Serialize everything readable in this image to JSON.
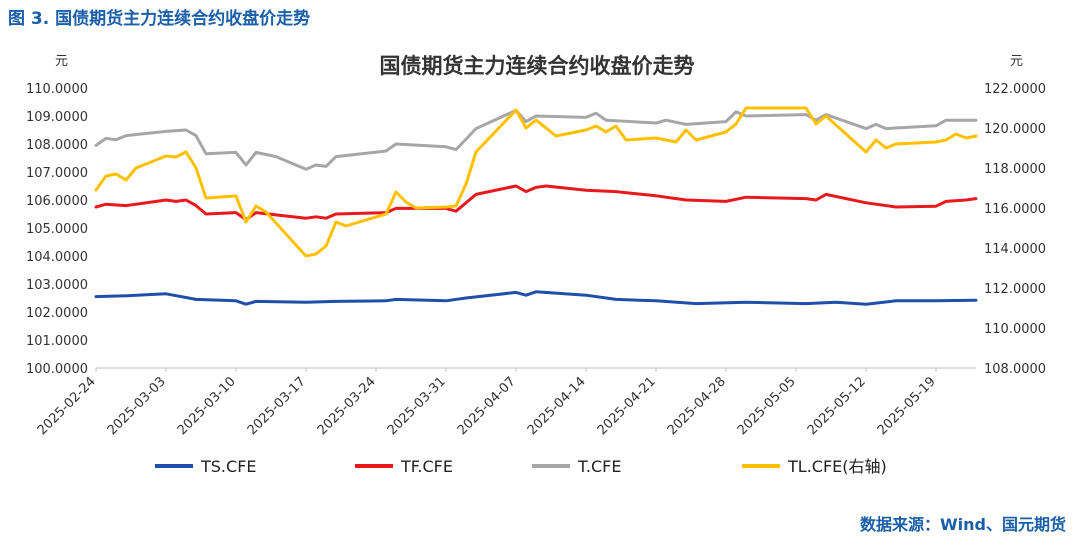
{
  "figure_caption": "图 3. 国债期货主力连续合约收盘价走势",
  "source_note": "数据来源：Wind、国元期货",
  "chart_data": {
    "type": "line",
    "title": "国债期货主力连续合约收盘价走势",
    "y_left_unit": "元",
    "y_right_unit": "元",
    "y_left_ticks": [
      "100.0000",
      "101.0000",
      "102.0000",
      "103.0000",
      "104.0000",
      "105.0000",
      "106.0000",
      "107.0000",
      "108.0000",
      "109.0000",
      "110.0000"
    ],
    "y_right_ticks": [
      "108.0000",
      "110.0000",
      "112.0000",
      "114.0000",
      "116.0000",
      "118.0000",
      "120.0000",
      "122.0000"
    ],
    "ylim_left": [
      100,
      110
    ],
    "ylim_right": [
      108,
      122
    ],
    "x_ticks": [
      "2025-02-24",
      "2025-03-03",
      "2025-03-10",
      "2025-03-17",
      "2025-03-24",
      "2025-03-31",
      "2025-04-07",
      "2025-04-14",
      "2025-04-21",
      "2025-04-28",
      "2025-05-05",
      "2025-05-12",
      "2025-05-19"
    ],
    "x_range": [
      "2025-02-24",
      "2025-05-23"
    ],
    "grid": false,
    "legend_position": "bottom",
    "series": [
      {
        "name": "TS.CFE",
        "axis": "left",
        "color": "#1f4fa8",
        "points": [
          [
            "2025-02-24",
            102.55
          ],
          [
            "2025-02-27",
            102.58
          ],
          [
            "2025-03-03",
            102.65
          ],
          [
            "2025-03-06",
            102.45
          ],
          [
            "2025-03-10",
            102.4
          ],
          [
            "2025-03-11",
            102.28
          ],
          [
            "2025-03-12",
            102.38
          ],
          [
            "2025-03-17",
            102.35
          ],
          [
            "2025-03-20",
            102.38
          ],
          [
            "2025-03-25",
            102.4
          ],
          [
            "2025-03-26",
            102.45
          ],
          [
            "2025-03-31",
            102.4
          ],
          [
            "2025-04-02",
            102.5
          ],
          [
            "2025-04-07",
            102.7
          ],
          [
            "2025-04-08",
            102.6
          ],
          [
            "2025-04-09",
            102.72
          ],
          [
            "2025-04-14",
            102.6
          ],
          [
            "2025-04-17",
            102.45
          ],
          [
            "2025-04-21",
            102.4
          ],
          [
            "2025-04-25",
            102.3
          ],
          [
            "2025-04-30",
            102.35
          ],
          [
            "2025-05-06",
            102.3
          ],
          [
            "2025-05-09",
            102.35
          ],
          [
            "2025-05-12",
            102.28
          ],
          [
            "2025-05-15",
            102.4
          ],
          [
            "2025-05-19",
            102.4
          ],
          [
            "2025-05-23",
            102.42
          ]
        ]
      },
      {
        "name": "TF.CFE",
        "axis": "left",
        "color": "#e8191c",
        "points": [
          [
            "2025-02-24",
            105.75
          ],
          [
            "2025-02-25",
            105.85
          ],
          [
            "2025-02-27",
            105.8
          ],
          [
            "2025-03-03",
            106.0
          ],
          [
            "2025-03-04",
            105.95
          ],
          [
            "2025-03-05",
            106.0
          ],
          [
            "2025-03-06",
            105.8
          ],
          [
            "2025-03-07",
            105.5
          ],
          [
            "2025-03-10",
            105.55
          ],
          [
            "2025-03-11",
            105.3
          ],
          [
            "2025-03-12",
            105.55
          ],
          [
            "2025-03-17",
            105.35
          ],
          [
            "2025-03-18",
            105.4
          ],
          [
            "2025-03-19",
            105.35
          ],
          [
            "2025-03-20",
            105.5
          ],
          [
            "2025-03-25",
            105.55
          ],
          [
            "2025-03-26",
            105.7
          ],
          [
            "2025-03-31",
            105.7
          ],
          [
            "2025-04-01",
            105.6
          ],
          [
            "2025-04-03",
            106.2
          ],
          [
            "2025-04-07",
            106.5
          ],
          [
            "2025-04-08",
            106.3
          ],
          [
            "2025-04-09",
            106.45
          ],
          [
            "2025-04-10",
            106.5
          ],
          [
            "2025-04-14",
            106.35
          ],
          [
            "2025-04-17",
            106.3
          ],
          [
            "2025-04-21",
            106.15
          ],
          [
            "2025-04-24",
            106.0
          ],
          [
            "2025-04-28",
            105.95
          ],
          [
            "2025-04-30",
            106.1
          ],
          [
            "2025-05-06",
            106.05
          ],
          [
            "2025-05-07",
            106.0
          ],
          [
            "2025-05-08",
            106.2
          ],
          [
            "2025-05-12",
            105.9
          ],
          [
            "2025-05-15",
            105.75
          ],
          [
            "2025-05-19",
            105.78
          ],
          [
            "2025-05-20",
            105.95
          ],
          [
            "2025-05-22",
            106.0
          ],
          [
            "2025-05-23",
            106.05
          ]
        ]
      },
      {
        "name": "T.CFE",
        "axis": "left",
        "color": "#a6a6a6",
        "points": [
          [
            "2025-02-24",
            107.95
          ],
          [
            "2025-02-25",
            108.2
          ],
          [
            "2025-02-26",
            108.15
          ],
          [
            "2025-02-27",
            108.3
          ],
          [
            "2025-03-03",
            108.45
          ],
          [
            "2025-03-05",
            108.5
          ],
          [
            "2025-03-06",
            108.3
          ],
          [
            "2025-03-07",
            107.65
          ],
          [
            "2025-03-10",
            107.7
          ],
          [
            "2025-03-11",
            107.25
          ],
          [
            "2025-03-12",
            107.7
          ],
          [
            "2025-03-14",
            107.55
          ],
          [
            "2025-03-17",
            107.1
          ],
          [
            "2025-03-18",
            107.25
          ],
          [
            "2025-03-19",
            107.2
          ],
          [
            "2025-03-20",
            107.55
          ],
          [
            "2025-03-25",
            107.75
          ],
          [
            "2025-03-26",
            108.0
          ],
          [
            "2025-03-31",
            107.9
          ],
          [
            "2025-04-01",
            107.8
          ],
          [
            "2025-04-03",
            108.55
          ],
          [
            "2025-04-07",
            109.2
          ],
          [
            "2025-04-08",
            108.8
          ],
          [
            "2025-04-09",
            109.0
          ],
          [
            "2025-04-14",
            108.95
          ],
          [
            "2025-04-15",
            109.1
          ],
          [
            "2025-04-16",
            108.85
          ],
          [
            "2025-04-21",
            108.75
          ],
          [
            "2025-04-22",
            108.85
          ],
          [
            "2025-04-24",
            108.7
          ],
          [
            "2025-04-28",
            108.8
          ],
          [
            "2025-04-29",
            109.15
          ],
          [
            "2025-04-30",
            109.0
          ],
          [
            "2025-05-06",
            109.05
          ],
          [
            "2025-05-07",
            108.85
          ],
          [
            "2025-05-08",
            109.05
          ],
          [
            "2025-05-12",
            108.55
          ],
          [
            "2025-05-13",
            108.7
          ],
          [
            "2025-05-14",
            108.55
          ],
          [
            "2025-05-19",
            108.65
          ],
          [
            "2025-05-20",
            108.85
          ],
          [
            "2025-05-23",
            108.85
          ]
        ]
      },
      {
        "name": "TL.CFE(右轴)",
        "axis": "right",
        "color": "#ffc000",
        "points": [
          [
            "2025-02-24",
            116.9
          ],
          [
            "2025-02-25",
            117.6
          ],
          [
            "2025-02-26",
            117.7
          ],
          [
            "2025-02-27",
            117.4
          ],
          [
            "2025-02-28",
            118.0
          ],
          [
            "2025-03-03",
            118.6
          ],
          [
            "2025-03-04",
            118.55
          ],
          [
            "2025-03-05",
            118.8
          ],
          [
            "2025-03-06",
            118.0
          ],
          [
            "2025-03-07",
            116.5
          ],
          [
            "2025-03-10",
            116.6
          ],
          [
            "2025-03-11",
            115.3
          ],
          [
            "2025-03-12",
            116.1
          ],
          [
            "2025-03-13",
            115.8
          ],
          [
            "2025-03-17",
            113.6
          ],
          [
            "2025-03-18",
            113.7
          ],
          [
            "2025-03-19",
            114.1
          ],
          [
            "2025-03-20",
            115.3
          ],
          [
            "2025-03-21",
            115.1
          ],
          [
            "2025-03-25",
            115.7
          ],
          [
            "2025-03-26",
            116.8
          ],
          [
            "2025-03-27",
            116.3
          ],
          [
            "2025-03-28",
            116.0
          ],
          [
            "2025-03-31",
            116.05
          ],
          [
            "2025-04-01",
            116.1
          ],
          [
            "2025-04-02",
            117.2
          ],
          [
            "2025-04-03",
            118.8
          ],
          [
            "2025-04-07",
            120.9
          ],
          [
            "2025-04-08",
            120.0
          ],
          [
            "2025-04-09",
            120.4
          ],
          [
            "2025-04-11",
            119.6
          ],
          [
            "2025-04-14",
            119.9
          ],
          [
            "2025-04-15",
            120.1
          ],
          [
            "2025-04-16",
            119.8
          ],
          [
            "2025-04-17",
            120.1
          ],
          [
            "2025-04-18",
            119.4
          ],
          [
            "2025-04-21",
            119.5
          ],
          [
            "2025-04-23",
            119.3
          ],
          [
            "2025-04-24",
            119.9
          ],
          [
            "2025-04-25",
            119.4
          ],
          [
            "2025-04-28",
            119.8
          ],
          [
            "2025-04-29",
            120.2
          ],
          [
            "2025-04-30",
            121.0
          ],
          [
            "2025-05-06",
            121.0
          ],
          [
            "2025-05-07",
            120.2
          ],
          [
            "2025-05-08",
            120.6
          ],
          [
            "2025-05-12",
            118.8
          ],
          [
            "2025-05-13",
            119.4
          ],
          [
            "2025-05-14",
            119.0
          ],
          [
            "2025-05-15",
            119.2
          ],
          [
            "2025-05-19",
            119.3
          ],
          [
            "2025-05-20",
            119.4
          ],
          [
            "2025-05-21",
            119.7
          ],
          [
            "2025-05-22",
            119.5
          ],
          [
            "2025-05-23",
            119.6
          ]
        ]
      }
    ]
  }
}
